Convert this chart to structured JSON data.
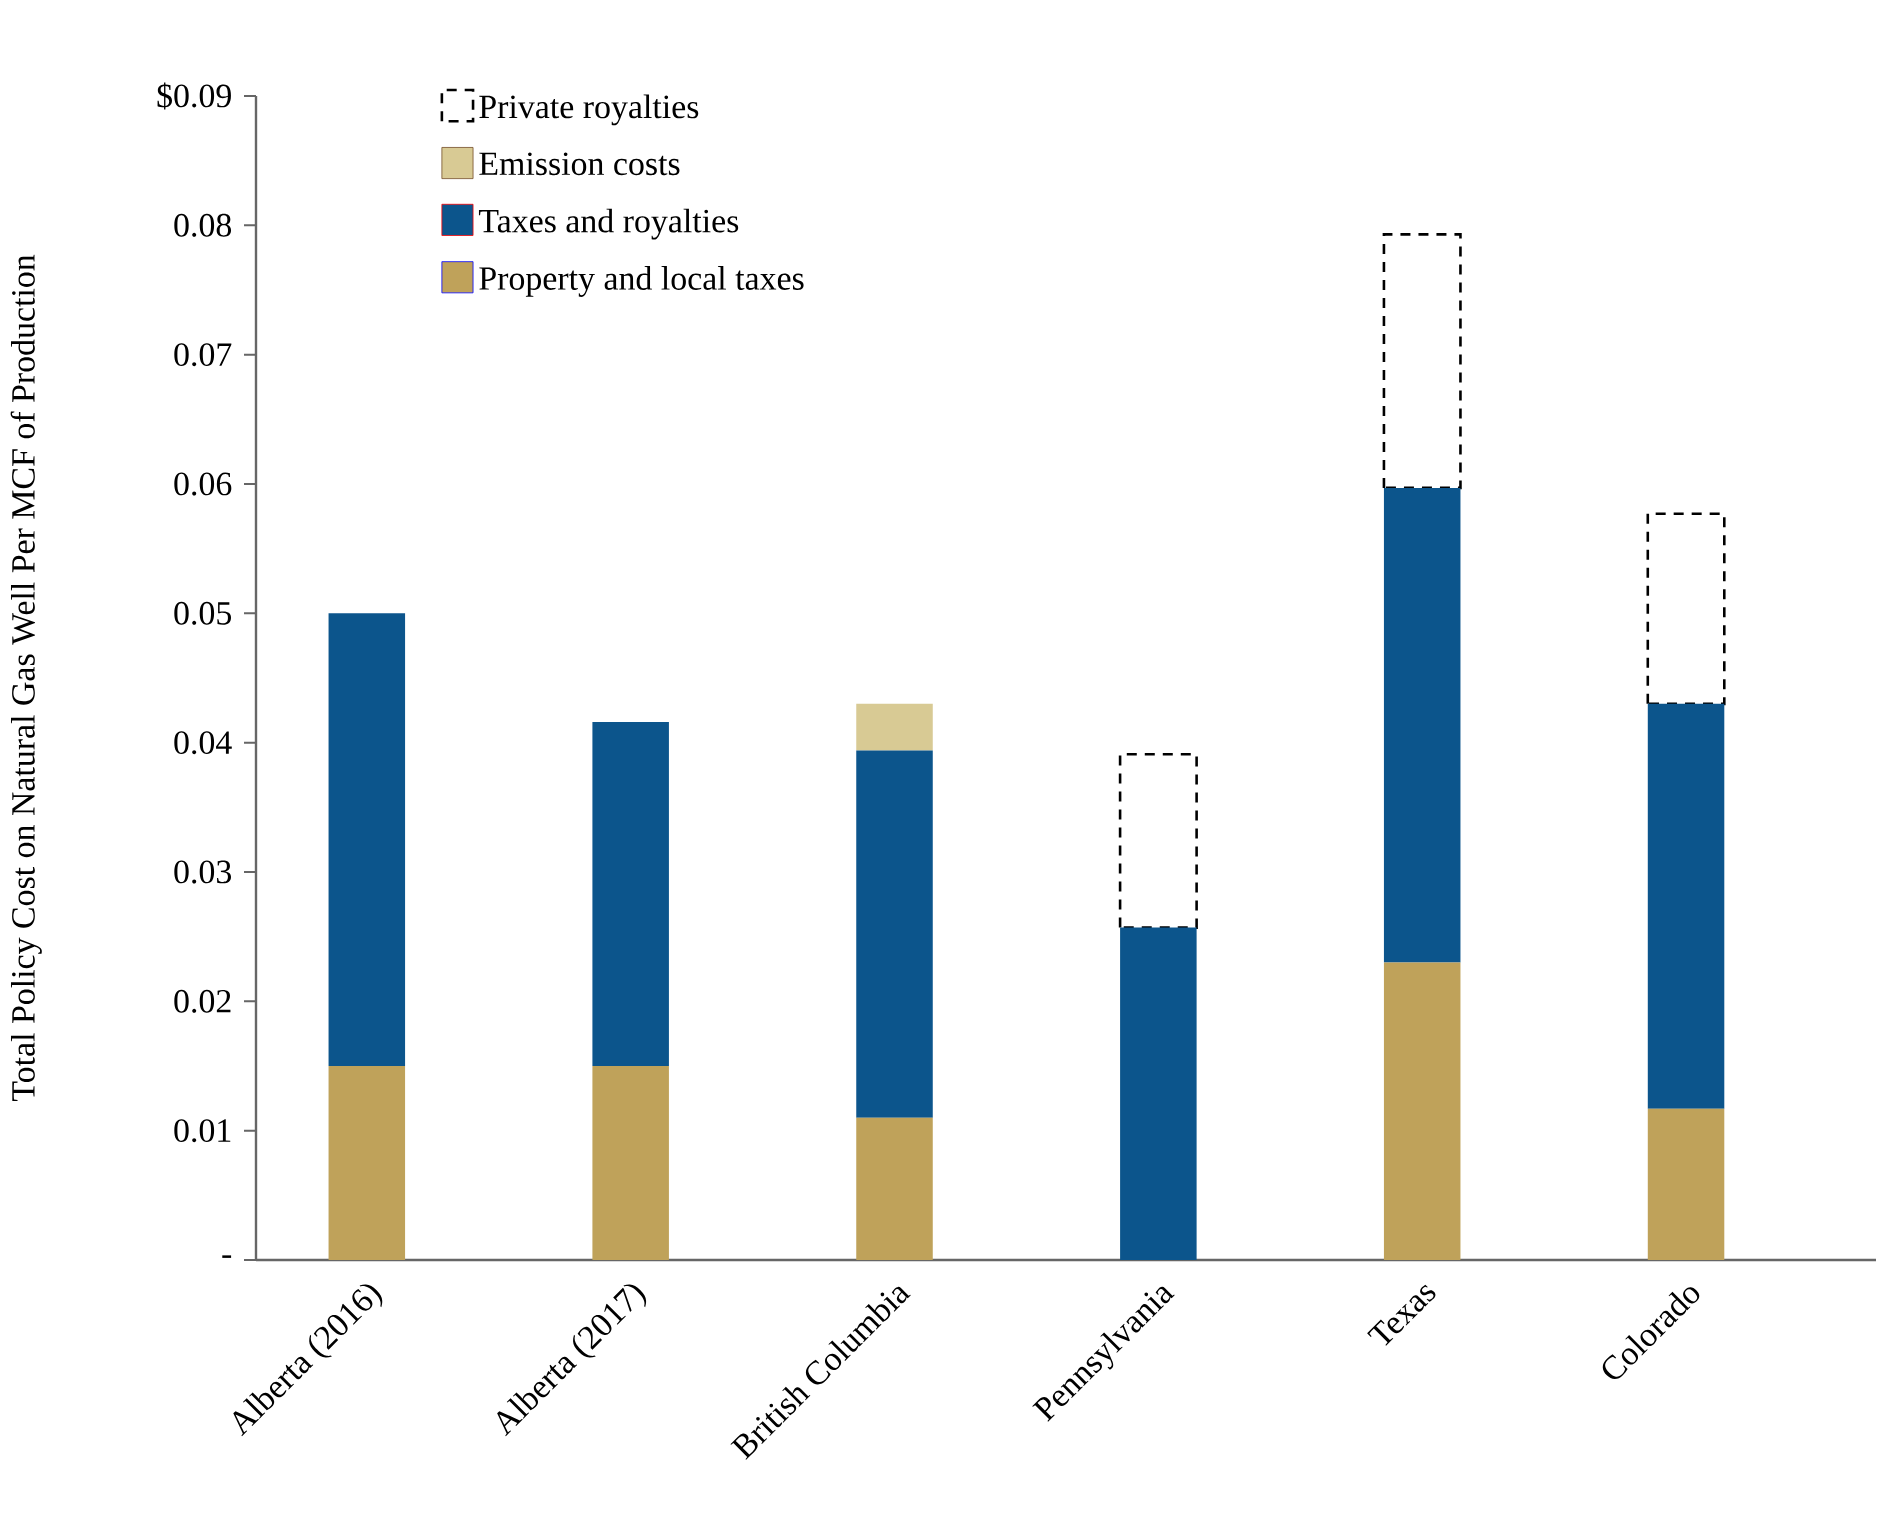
{
  "chart_data": {
    "type": "bar",
    "stacked": true,
    "ylabel": "Total Policy Cost on Natural Gas Well  Per MCF of Production",
    "categories": [
      "Alberta (2016)",
      "Alberta (2017)",
      "British Columbia",
      "Pennsylvania",
      "Texas",
      "Colorado"
    ],
    "series": [
      {
        "name": "Property and local taxes",
        "color": "#bfa25a",
        "values": [
          0.015,
          0.015,
          0.011,
          0,
          0.023,
          0.0117
        ]
      },
      {
        "name": "Taxes and royalties",
        "color": "#0c558c",
        "values": [
          0.035,
          0.0266,
          0.0284,
          0.0257,
          0.0367,
          0.0313
        ]
      },
      {
        "name": "Emission costs",
        "color": "#d8ca94",
        "values": [
          0,
          0,
          0.0036,
          0,
          0,
          0
        ]
      },
      {
        "name": "Private royalties",
        "color": "#000000",
        "line_style": "dashed",
        "values": [
          null,
          null,
          null,
          0.0134,
          0.0196,
          0.0147
        ]
      }
    ],
    "ylim": [
      0,
      0.09
    ],
    "yticks": [
      {
        "value": 0,
        "label": "-"
      },
      0.01,
      0.02,
      0.03,
      0.04,
      0.05,
      0.06,
      0.07,
      0.08,
      {
        "value": 0.09,
        "label": "$0.09"
      }
    ],
    "legend": "top left",
    "grid": false
  }
}
